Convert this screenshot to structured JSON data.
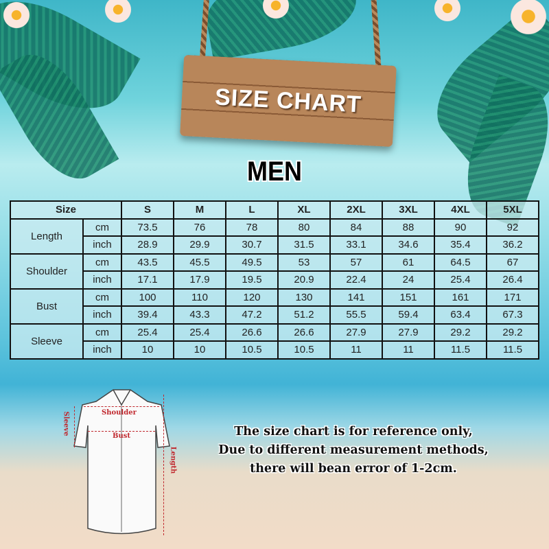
{
  "sign_title": "SIZE CHART",
  "section_title": "MEN",
  "table": {
    "corner_label": "Size",
    "sizes": [
      "S",
      "M",
      "L",
      "XL",
      "2XL",
      "3XL",
      "4XL",
      "5XL"
    ],
    "measurements": [
      {
        "name": "Length",
        "rows": [
          {
            "unit": "cm",
            "values": [
              "73.5",
              "76",
              "78",
              "80",
              "84",
              "88",
              "90",
              "92"
            ]
          },
          {
            "unit": "inch",
            "values": [
              "28.9",
              "29.9",
              "30.7",
              "31.5",
              "33.1",
              "34.6",
              "35.4",
              "36.2"
            ]
          }
        ]
      },
      {
        "name": "Shoulder",
        "rows": [
          {
            "unit": "cm",
            "values": [
              "43.5",
              "45.5",
              "49.5",
              "53",
              "57",
              "61",
              "64.5",
              "67"
            ]
          },
          {
            "unit": "inch",
            "values": [
              "17.1",
              "17.9",
              "19.5",
              "20.9",
              "22.4",
              "24",
              "25.4",
              "26.4"
            ]
          }
        ]
      },
      {
        "name": "Bust",
        "rows": [
          {
            "unit": "cm",
            "values": [
              "100",
              "110",
              "120",
              "130",
              "141",
              "151",
              "161",
              "171"
            ]
          },
          {
            "unit": "inch",
            "values": [
              "39.4",
              "43.3",
              "47.2",
              "51.2",
              "55.5",
              "59.4",
              "63.4",
              "67.3"
            ]
          }
        ]
      },
      {
        "name": "Sleeve",
        "rows": [
          {
            "unit": "cm",
            "values": [
              "25.4",
              "25.4",
              "26.6",
              "26.6",
              "27.9",
              "27.9",
              "29.2",
              "29.2"
            ]
          },
          {
            "unit": "inch",
            "values": [
              "10",
              "10",
              "10.5",
              "10.5",
              "11",
              "11",
              "11.5",
              "11.5"
            ]
          }
        ]
      }
    ]
  },
  "diagram": {
    "shoulder": "Shoulder",
    "bust": "Bust",
    "sleeve": "Sleeve",
    "length": "Length"
  },
  "note": {
    "line1": "The size chart is for reference only,",
    "line2": "Due to different measurement methods,",
    "line3": "there will bean error of 1-2cm."
  },
  "colors": {
    "label_red": "#c0262c",
    "table_fill": "#cdecf2"
  }
}
